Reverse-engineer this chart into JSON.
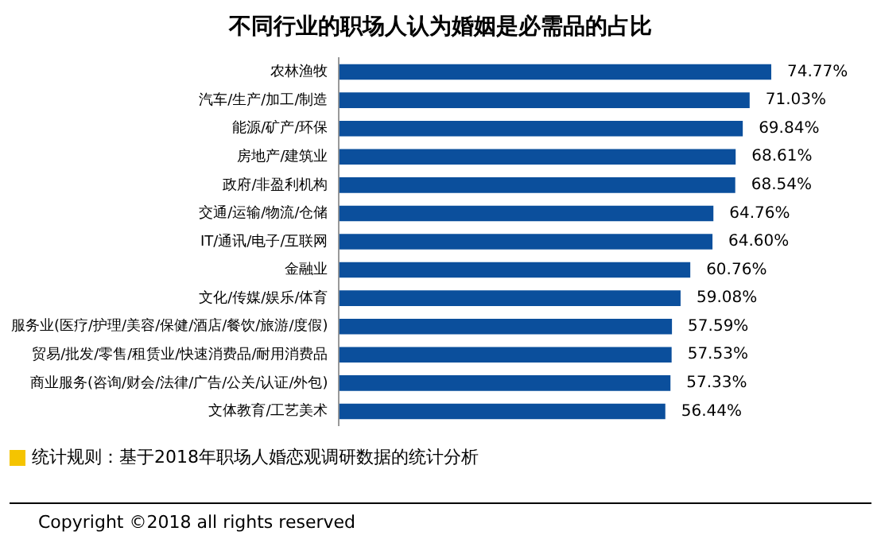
{
  "chart_data": {
    "type": "bar",
    "orientation": "horizontal",
    "title": "不同行业的职场人认为婚姻是必需品的占比",
    "categories": [
      "农林渔牧",
      "汽车/生产/加工/制造",
      "能源/矿产/环保",
      "房地产/建筑业",
      "政府/非盈利机构",
      "交通/运输/物流/仓储",
      "IT/通讯/电子/互联网",
      "金融业",
      "文化/传媒/娱乐/体育",
      "服务业(医疗/护理/美容/保健/酒店/餐饮/旅游/度假)",
      "贸易/批发/零售/租赁业/快速消费品/耐用消费品",
      "商业服务(咨询/财会/法律/广告/公关/认证/外包)",
      "文体教育/工艺美术"
    ],
    "values": [
      74.77,
      71.03,
      69.84,
      68.61,
      68.54,
      64.76,
      64.6,
      60.76,
      59.08,
      57.59,
      57.53,
      57.33,
      56.44
    ],
    "value_labels": [
      "74.77%",
      "71.03%",
      "69.84%",
      "68.61%",
      "68.54%",
      "64.76%",
      "64.60%",
      "60.76%",
      "59.08%",
      "57.59%",
      "57.53%",
      "57.33%",
      "56.44%"
    ],
    "color": "#0b4f9c",
    "tick_labels": "y",
    "grid": false,
    "legend": false,
    "annotations": [
      "统计规则：基于2018年职场人婚恋观调研数据的统计分析",
      "Copyright ©2018 all rights reserved"
    ]
  }
}
